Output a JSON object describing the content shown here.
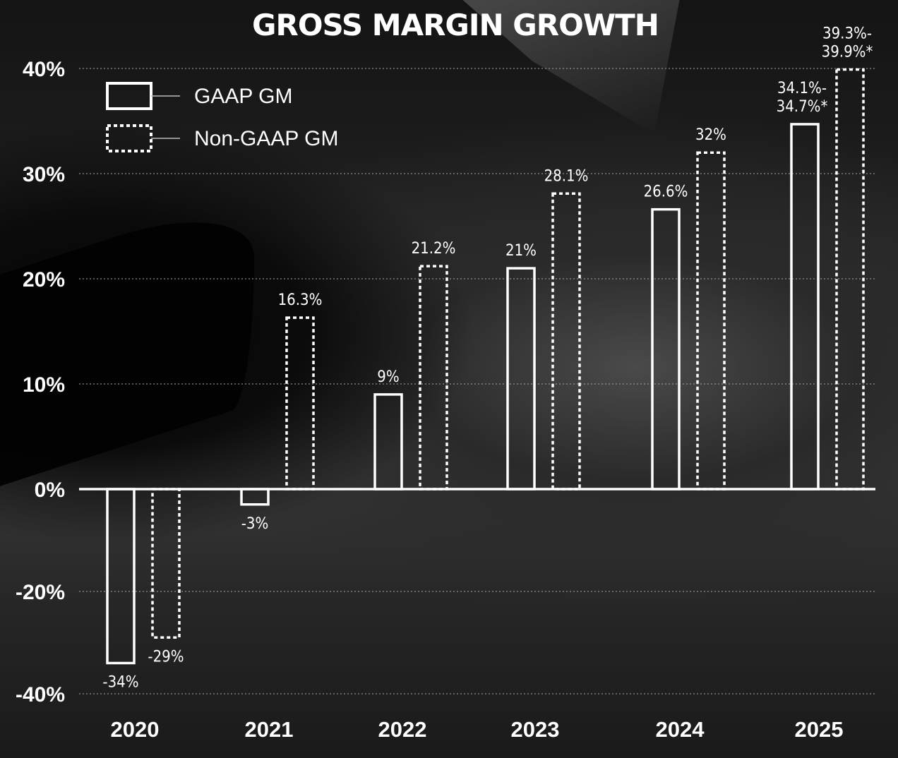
{
  "chart_data": {
    "type": "bar",
    "title": "GROSS MARGIN GROWTH",
    "xlabel": "",
    "ylabel": "",
    "categories": [
      "2020",
      "2021",
      "2022",
      "2023",
      "2024",
      "2025"
    ],
    "ylim": [
      -40,
      40
    ],
    "yticks": [
      40,
      30,
      20,
      10,
      0,
      -20,
      -40
    ],
    "ytick_labels": [
      "40%",
      "30%",
      "20%",
      "10%",
      "0%",
      "-20%",
      "-40%"
    ],
    "grid": true,
    "legend_position": "top-left",
    "series": [
      {
        "name": "GAAP GM",
        "style": "solid",
        "values": [
          -34,
          -3,
          9,
          21,
          26.6,
          34.7
        ],
        "labels": [
          "-34%",
          "-3%",
          "9%",
          "21%",
          "26.6%",
          "34.1%-\n34.7%*"
        ]
      },
      {
        "name": "Non-GAAP GM",
        "style": "dotted",
        "values": [
          -29,
          16.3,
          21.2,
          28.1,
          32,
          39.9
        ],
        "labels": [
          "-29%",
          "16.3%",
          "21.2%",
          "28.1%",
          "32%",
          "39.3%-\n39.9%*"
        ]
      }
    ],
    "colors": {
      "bar_stroke": "#ffffff",
      "grid": "#9a9a9a",
      "text": "#ffffff"
    }
  }
}
